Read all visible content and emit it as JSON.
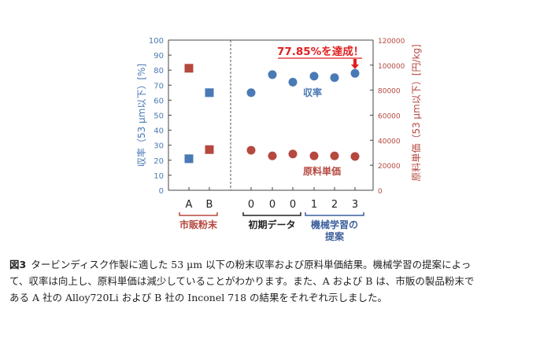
{
  "chart_data": {
    "type": "scatter",
    "categories": [
      "A",
      "B",
      "0",
      "0",
      "0",
      "1",
      "2",
      "3"
    ],
    "y_left": {
      "label": "収率（53 µm以下）[%]",
      "ylim": [
        0,
        100
      ],
      "ticks": [
        "0",
        "10",
        "20",
        "30",
        "40",
        "50",
        "60",
        "70",
        "80",
        "90",
        "100"
      ],
      "color": "#4a7ab5"
    },
    "y_right": {
      "label": "原料単価（53 µm以下）[円/kg]",
      "ylim": [
        0,
        120000
      ],
      "ticks": [
        "0",
        "20000",
        "40000",
        "60000",
        "80000",
        "100000",
        "120000"
      ],
      "color": "#b5483f"
    },
    "groups": [
      {
        "label": "市販粉末",
        "color": "#b5483f"
      },
      {
        "label": "初期データ",
        "color": "#222222"
      },
      {
        "label": "機械学習の\n提案",
        "color": "#3d5f9c"
      }
    ],
    "series": [
      {
        "name": "",
        "axis": "left",
        "marker": "square",
        "color": "#4a7ab5",
        "x": [
          0,
          1
        ],
        "values": [
          21,
          65
        ]
      },
      {
        "name": "",
        "axis": "right",
        "marker": "square",
        "color": "#b5483f",
        "x": [
          0,
          1
        ],
        "values": [
          97500,
          32500
        ]
      },
      {
        "name": "収率",
        "axis": "left",
        "marker": "circle",
        "color": "#4a7ab5",
        "x": [
          2,
          3,
          4,
          5,
          6,
          7
        ],
        "values": [
          65,
          77,
          72,
          76,
          75,
          77.85
        ]
      },
      {
        "name": "原料単価",
        "axis": "right",
        "marker": "circle",
        "color": "#b5483f",
        "x": [
          2,
          3,
          4,
          5,
          6,
          7
        ],
        "values": [
          32000,
          27500,
          29000,
          27500,
          27500,
          27000
        ]
      }
    ],
    "annotation": {
      "text": "77.85%を達成！",
      "color": "#e02020"
    },
    "grid": false
  },
  "caption": {
    "label": "図3",
    "lines": [
      "タービンディスク作製に適した 53 µm 以下の粉末収率および原料単価結果。機械学習の提案によっ",
      "て、収率は向上し、原料単価は減少していることがわかります。また、A および B は、市販の製品粉末で",
      "ある A 社の Alloy720Li および B 社の Inconel 718 の結果をそれぞれ示しました。"
    ]
  }
}
